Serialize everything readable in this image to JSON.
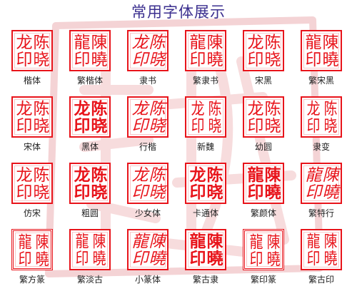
{
  "title": "常用字体展示",
  "seal_chars": {
    "simplified": [
      "龙",
      "陈",
      "印",
      "晓"
    ],
    "traditional": [
      "龍",
      "陳",
      "印",
      "曉"
    ]
  },
  "colors": {
    "seal_red": "#e8141b",
    "title_purple": "#3b2f8f",
    "watermark_pink": "#f4d3d5"
  },
  "fonts": [
    {
      "label": "楷体",
      "chars": [
        "龙",
        "陈",
        "印",
        "晓"
      ]
    },
    {
      "label": "繁楷体",
      "chars": [
        "龍",
        "陳",
        "印",
        "曉"
      ]
    },
    {
      "label": "隶书",
      "chars": [
        "龙",
        "陈",
        "印",
        "晓"
      ]
    },
    {
      "label": "繁隶书",
      "chars": [
        "龍",
        "陳",
        "印",
        "曉"
      ]
    },
    {
      "label": "宋黑",
      "chars": [
        "龙",
        "陈",
        "印",
        "晓"
      ]
    },
    {
      "label": "繁宋黑",
      "chars": [
        "龍",
        "陳",
        "印",
        "曉"
      ]
    },
    {
      "label": "宋体",
      "chars": [
        "龙",
        "陈",
        "印",
        "晓"
      ]
    },
    {
      "label": "黑体",
      "chars": [
        "龙",
        "陈",
        "印",
        "晓"
      ]
    },
    {
      "label": "行楷",
      "chars": [
        "龙",
        "陈",
        "印",
        "晓"
      ]
    },
    {
      "label": "新魏",
      "chars": [
        "龙",
        "陈",
        "印",
        "晓"
      ]
    },
    {
      "label": "幼圆",
      "chars": [
        "龙",
        "陈",
        "印",
        "晓"
      ]
    },
    {
      "label": "隶变",
      "chars": [
        "龙",
        "陈",
        "印",
        "晓"
      ]
    },
    {
      "label": "仿宋",
      "chars": [
        "龙",
        "陈",
        "印",
        "晓"
      ]
    },
    {
      "label": "粗圆",
      "chars": [
        "龙",
        "陈",
        "印",
        "晓"
      ]
    },
    {
      "label": "少女体",
      "chars": [
        "龙",
        "陈",
        "印",
        "晓"
      ]
    },
    {
      "label": "卡通体",
      "chars": [
        "龙",
        "陈",
        "印",
        "晓"
      ]
    },
    {
      "label": "繁颜体",
      "chars": [
        "龍",
        "陳",
        "印",
        "曉"
      ]
    },
    {
      "label": "繁特行",
      "chars": [
        "龍",
        "陳",
        "印",
        "曉"
      ]
    },
    {
      "label": "繁方篆",
      "chars": [
        "龍",
        "陳",
        "印",
        "曉"
      ]
    },
    {
      "label": "繁淡古",
      "chars": [
        "龍",
        "陳",
        "印",
        "曉"
      ]
    },
    {
      "label": "小篆体",
      "chars": [
        "龍",
        "陳",
        "印",
        "曉"
      ]
    },
    {
      "label": "繁古隶",
      "chars": [
        "龍",
        "陳",
        "印",
        "曉"
      ]
    },
    {
      "label": "繁印篆",
      "chars": [
        "龍",
        "陳",
        "印",
        "曉"
      ]
    },
    {
      "label": "繁古印",
      "chars": [
        "龍",
        "陳",
        "印",
        "曉"
      ]
    }
  ]
}
